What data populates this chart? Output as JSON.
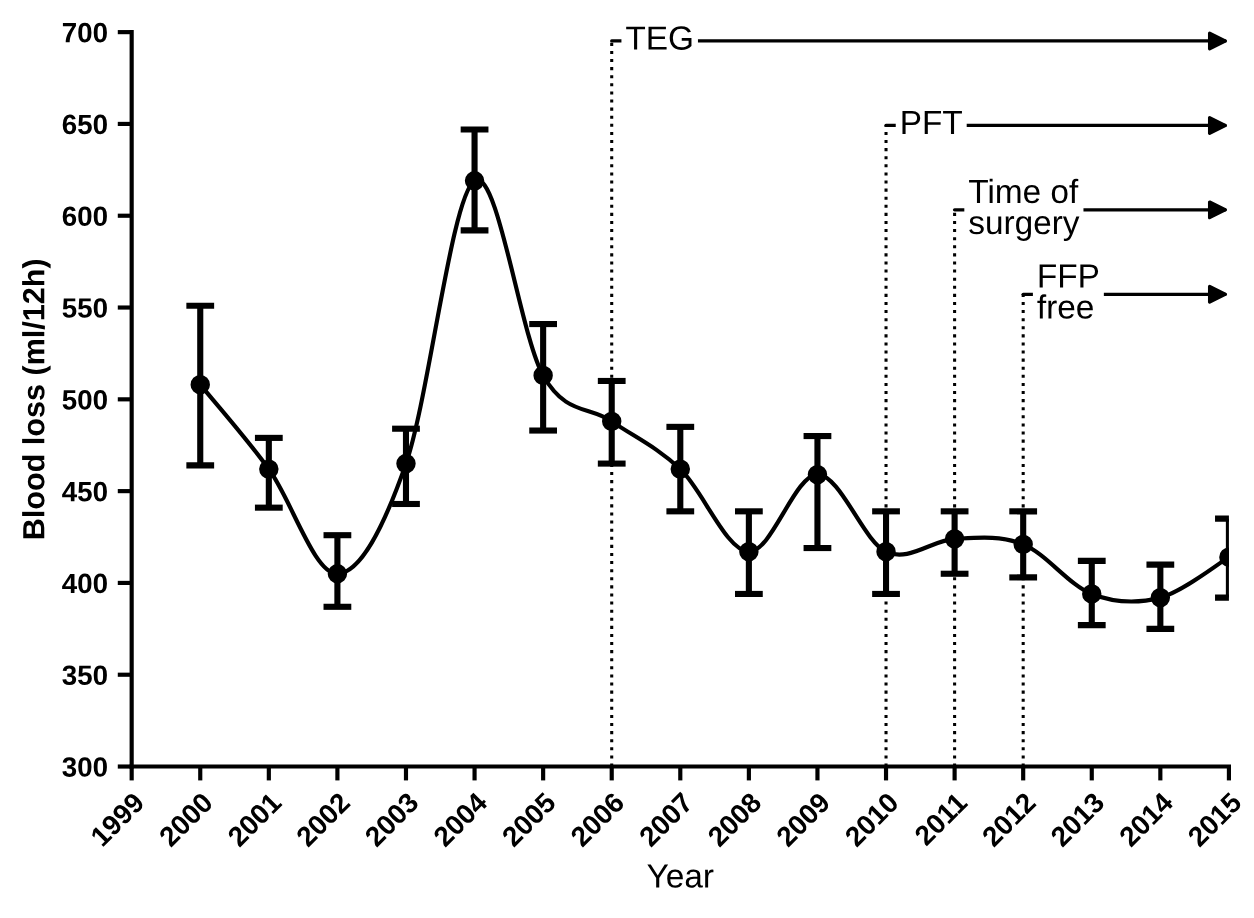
{
  "chart_data": {
    "type": "line",
    "xlabel": "Year",
    "ylabel": "Blood loss (ml/12h)",
    "x": [
      2000,
      2001,
      2002,
      2003,
      2004,
      2005,
      2006,
      2007,
      2008,
      2009,
      2010,
      2011,
      2012,
      2013,
      2014,
      2015
    ],
    "series": [
      {
        "color": "#000000",
        "values": [
          508,
          462,
          405,
          465,
          619,
          513,
          488,
          462,
          417,
          459,
          417,
          424,
          421,
          394,
          392,
          414
        ],
        "errors": [
          [
            464,
            551
          ],
          [
            441,
            479
          ],
          [
            387,
            426
          ],
          [
            443,
            484
          ],
          [
            592,
            647
          ],
          [
            483,
            541
          ],
          [
            465,
            510
          ],
          [
            439,
            485
          ],
          [
            394,
            439
          ],
          [
            419,
            480
          ],
          [
            394,
            439
          ],
          [
            405,
            439
          ],
          [
            403,
            439
          ],
          [
            377,
            412
          ],
          [
            375,
            410
          ],
          [
            392,
            435
          ]
        ]
      }
    ],
    "marker": "circle",
    "line_style": "solid",
    "xlim": [
      1999,
      2015
    ],
    "xticks": [
      1999,
      2000,
      2001,
      2002,
      2003,
      2004,
      2005,
      2006,
      2007,
      2008,
      2009,
      2010,
      2011,
      2012,
      2013,
      2014,
      2015
    ],
    "ylim": [
      300,
      700
    ],
    "yticks": [
      300,
      350,
      400,
      450,
      500,
      550,
      600,
      650,
      700
    ],
    "ref_lines": [
      {
        "axis": "x",
        "value": 2006,
        "label": "TEG",
        "line_style": "dotted"
      },
      {
        "axis": "x",
        "value": 2010,
        "label": "PFT",
        "line_style": "dotted"
      },
      {
        "axis": "x",
        "value": 2011,
        "label": "Time of\nsurgery",
        "line_style": "dotted"
      },
      {
        "axis": "x",
        "value": 2012,
        "label": "FFP\nfree",
        "line_style": "dotted"
      }
    ],
    "grid": false,
    "legend": false
  }
}
